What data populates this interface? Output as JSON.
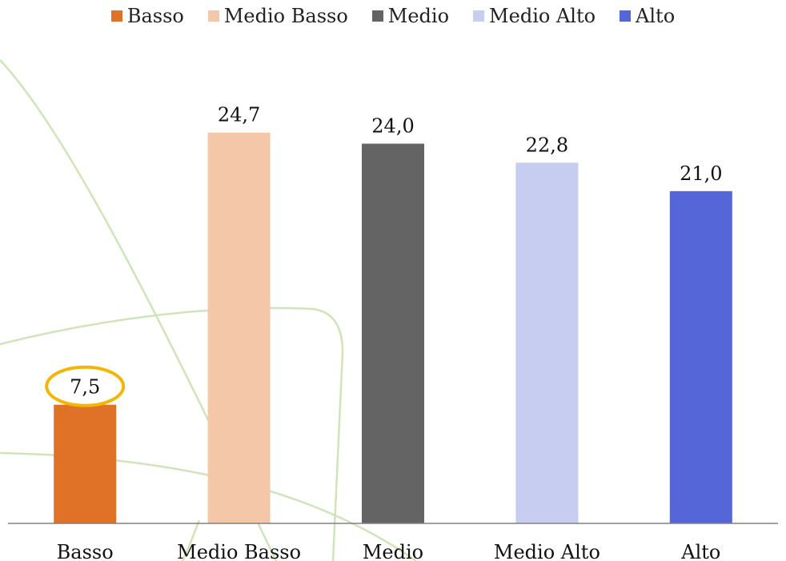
{
  "chart_data": {
    "type": "bar",
    "categories": [
      "Basso",
      "Medio Basso",
      "Medio",
      "Medio Alto",
      "Alto"
    ],
    "values": [
      7.5,
      24.7,
      24.0,
      22.8,
      21.0
    ],
    "value_labels": [
      "7,5",
      "24,7",
      "24,0",
      "22,8",
      "21,0"
    ],
    "colors": [
      "#E07228",
      "#F4C7A8",
      "#646464",
      "#C7CDF0",
      "#5566D9"
    ],
    "legend": [
      "Basso",
      "Medio Basso",
      "Medio",
      "Medio Alto",
      "Alto"
    ],
    "legend_position": "top",
    "grid": false,
    "ylim": [
      0,
      26
    ],
    "highlighted_label_color": "#F2B705",
    "highlighted_category": "Basso",
    "title": "",
    "xlabel": "",
    "ylabel": ""
  }
}
